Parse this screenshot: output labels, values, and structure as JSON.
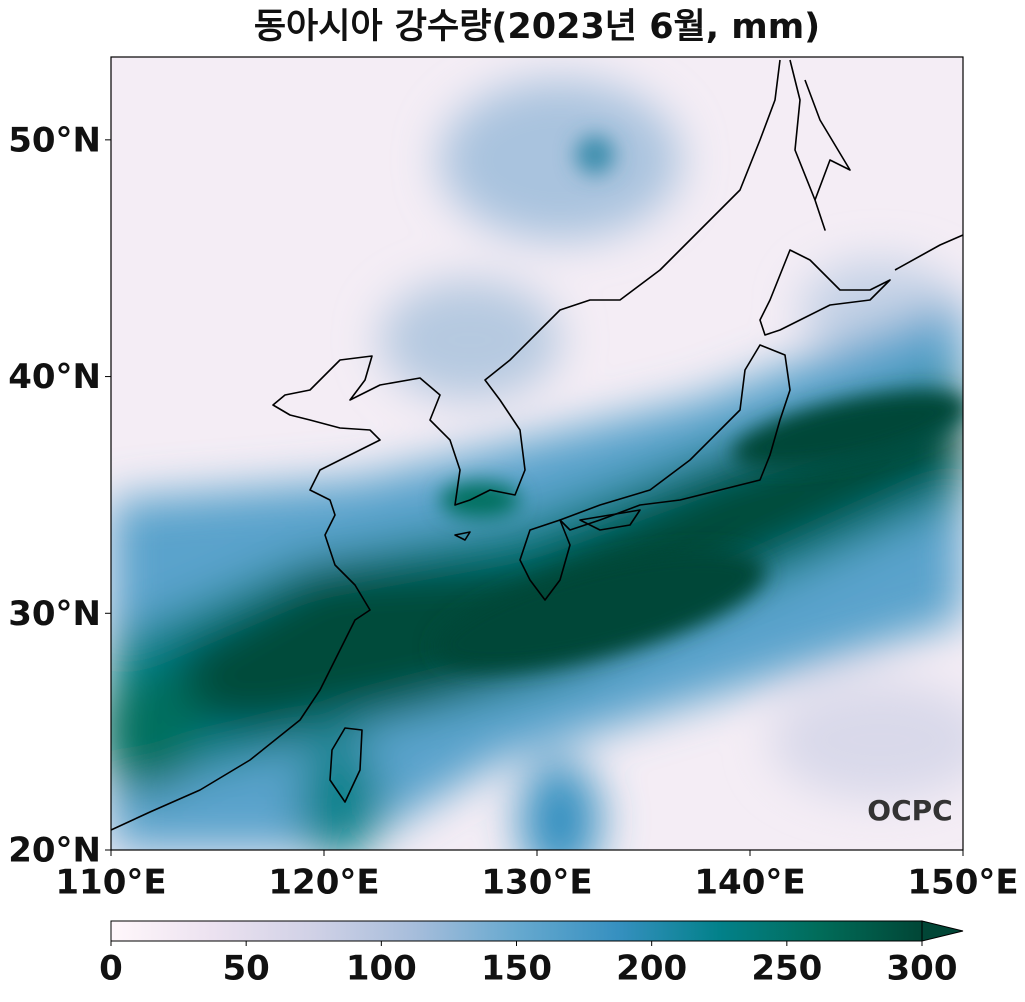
{
  "title": "동아시아 강수량(2023년 6월, mm)",
  "map": {
    "xlim": [
      110,
      150
    ],
    "ylim": [
      20,
      53.5
    ],
    "xticks": [
      {
        "value": 110,
        "label": "110°E"
      },
      {
        "value": 120,
        "label": "120°E"
      },
      {
        "value": 130,
        "label": "130°E"
      },
      {
        "value": 140,
        "label": "140°E"
      },
      {
        "value": 150,
        "label": "150°E"
      }
    ],
    "yticks": [
      {
        "value": 20,
        "label": "20°N"
      },
      {
        "value": 30,
        "label": "30°N"
      },
      {
        "value": 40,
        "label": "40°N"
      },
      {
        "value": 50,
        "label": "50°N"
      }
    ]
  },
  "colorbar": {
    "lim": [
      0,
      300
    ],
    "ticks": [
      0,
      50,
      100,
      150,
      200,
      250,
      300
    ],
    "colors": [
      "#fff7fb",
      "#ece2f0",
      "#d0d1e6",
      "#a6bddb",
      "#67a9cf",
      "#3690c0",
      "#02818a",
      "#016c59",
      "#014636"
    ],
    "extend": "max"
  },
  "logo": "OCPC"
}
